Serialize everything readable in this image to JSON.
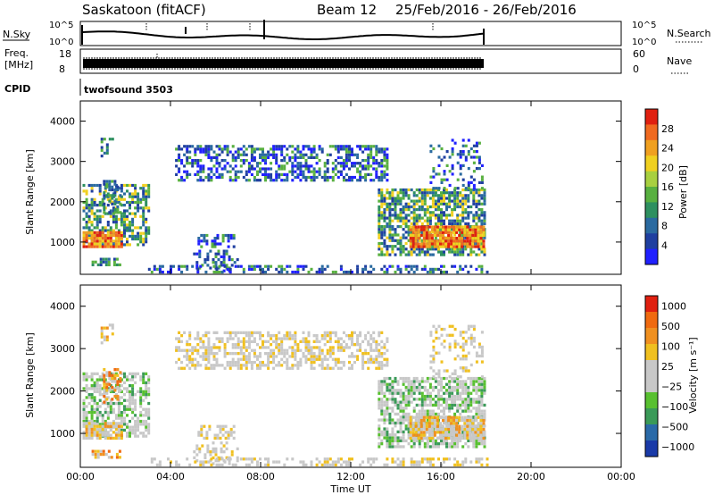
{
  "header": {
    "station": "Saskatoon (fitACF)",
    "beam": "Beam 12",
    "date_range": "25/Feb/2016 - 26/Feb/2016"
  },
  "strips": {
    "nsky_label": "N.Sky",
    "nsky_ticks": [
      "10^5",
      "10^0"
    ],
    "nsearch_label": "N.Search",
    "nsearch_ticks": [
      "10^5",
      "10^0"
    ],
    "freq_label_1": "Freq.",
    "freq_label_2": "[MHz]",
    "freq_ticks": [
      "18",
      "8"
    ],
    "nave_label": "Nave",
    "nave_ticks": [
      "60",
      "0"
    ],
    "cpid_label": "CPID",
    "cpid_value": "twofsound 3503"
  },
  "chart_data": [
    {
      "type": "heatmap",
      "name": "power",
      "ylabel": "Slant Range [km]",
      "yticks": [
        "1000",
        "2000",
        "3000",
        "4000"
      ],
      "ylim": [
        200,
        4500
      ],
      "xlim": [
        0,
        24
      ],
      "colorbar_label": "Power [dB]",
      "colorbar_ticks": [
        "4",
        "8",
        "12",
        "16",
        "20",
        "24",
        "28"
      ],
      "colorbar_colors": [
        "#2020ff",
        "#1f3fa0",
        "#2a6aa0",
        "#2e9060",
        "#58b040",
        "#a8d040",
        "#f0d020",
        "#f0a020",
        "#f06a20",
        "#e02010"
      ]
    },
    {
      "type": "heatmap",
      "name": "velocity",
      "ylabel": "Slant Range [km]",
      "yticks": [
        "1000",
        "2000",
        "3000",
        "4000"
      ],
      "ylim": [
        200,
        4500
      ],
      "xlim": [
        0,
        24
      ],
      "colorbar_label": "Velocity [m s⁻¹]",
      "colorbar_ticks": [
        "1000",
        "500",
        "100",
        "25",
        "-25",
        "-100",
        "-500",
        "-1000"
      ],
      "colorbar_colors": [
        "#1a3aa8",
        "#2a6aa8",
        "#3a9a58",
        "#58c030",
        "#c8c8c8",
        "#c8c8c8",
        "#f0c020",
        "#f09020",
        "#f06a10",
        "#e02010"
      ]
    }
  ],
  "xaxis": {
    "ticks": [
      "00:00",
      "04:00",
      "08:00",
      "12:00",
      "16:00",
      "20:00",
      "00:00"
    ],
    "label": "Time UT"
  }
}
